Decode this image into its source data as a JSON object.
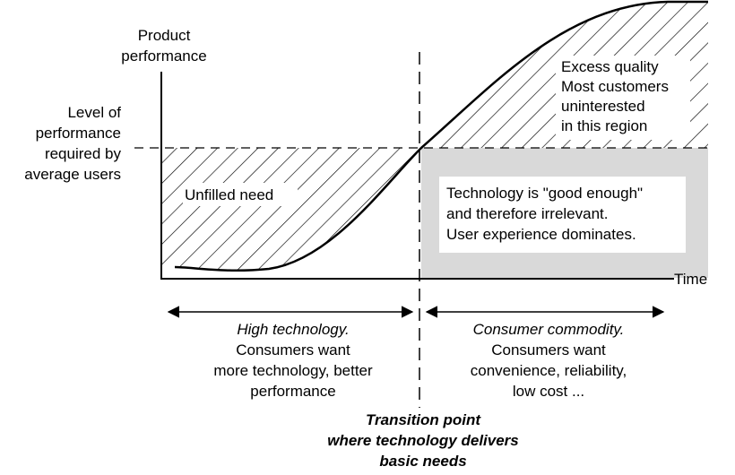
{
  "y_axis_label": [
    "Product",
    "performance"
  ],
  "threshold_label": [
    "Level of",
    "performance",
    "required by",
    "average users"
  ],
  "x_axis_label": "Time",
  "unfilled_need": "Unfilled need",
  "excess_quality": [
    "Excess quality",
    "Most customers",
    "uninterested",
    "in this region"
  ],
  "good_enough": [
    "Technology is \"good enough\"",
    "and therefore irrelevant.",
    "User experience dominates."
  ],
  "left_phase": {
    "title": "High technology.",
    "lines": [
      "Consumers want",
      "more technology, better",
      "performance"
    ]
  },
  "right_phase": {
    "title": "Consumer commodity.",
    "lines": [
      "Consumers want",
      "convenience, reliability,",
      "low cost ..."
    ]
  },
  "transition": [
    "Transition point",
    "where technology delivers",
    "basic needs"
  ],
  "colors": {
    "ink": "#000000",
    "gray_region": "#d9d9d9",
    "background": "#ffffff"
  }
}
